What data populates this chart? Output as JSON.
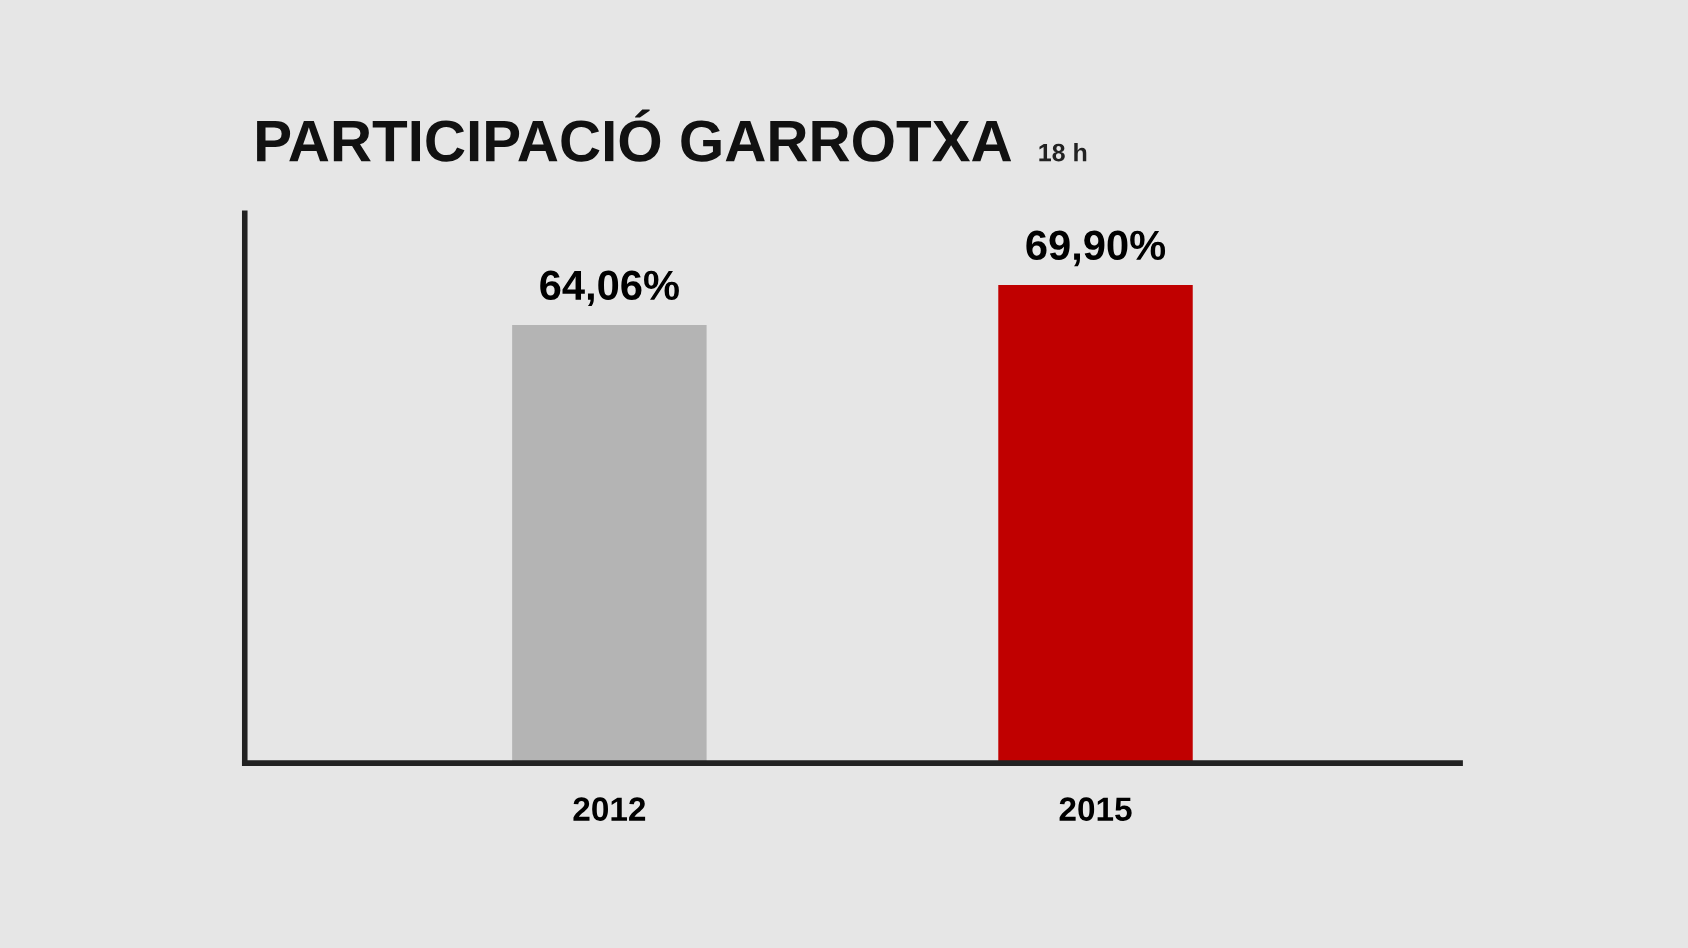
{
  "chart_data": {
    "type": "bar",
    "title": "PARTICIPACIÓ GARROTXA",
    "subtitle": "18 h",
    "categories": [
      "2012",
      "2015"
    ],
    "values": [
      64.06,
      69.9
    ],
    "value_labels": [
      "64,06%",
      "69,90%"
    ],
    "colors": [
      "#b4b4b4",
      "#c00000"
    ],
    "grid": false,
    "legend": false
  }
}
